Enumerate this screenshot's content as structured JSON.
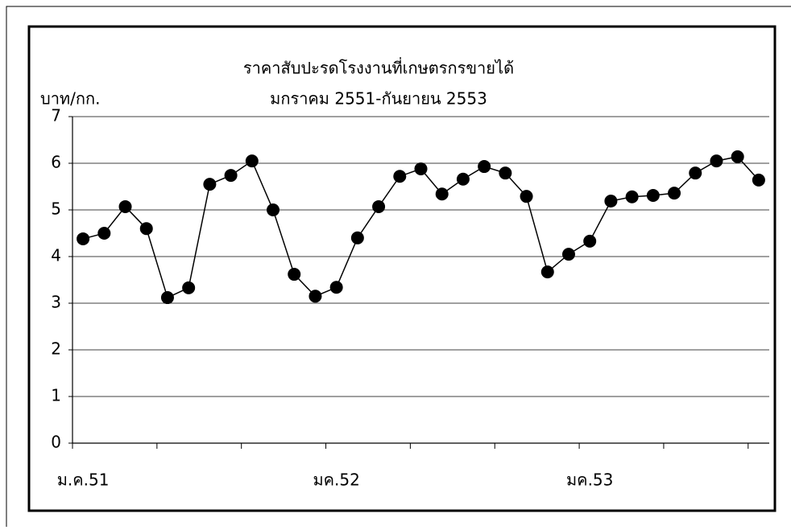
{
  "chart_data": {
    "type": "line",
    "title": "ราคาสับปะรดโรงงานที่เกษตรกรขายได้",
    "subtitle": "มกราคม 2551-กันยายน 2553",
    "y_label": "บาท/กก.",
    "categories": [
      "ม.ค.51",
      null,
      null,
      null,
      null,
      null,
      null,
      null,
      null,
      null,
      null,
      null,
      "มค.52",
      null,
      null,
      null,
      null,
      null,
      null,
      null,
      null,
      null,
      null,
      null,
      "มค.53",
      null,
      null,
      null,
      null,
      null,
      null,
      null,
      null
    ],
    "values": [
      4.38,
      4.5,
      5.07,
      4.6,
      3.12,
      3.33,
      5.55,
      5.74,
      6.05,
      5.0,
      3.62,
      3.15,
      3.34,
      4.4,
      5.07,
      5.72,
      5.88,
      5.34,
      5.66,
      5.93,
      5.79,
      5.29,
      3.67,
      4.05,
      4.33,
      5.19,
      5.28,
      5.31,
      5.36,
      5.79,
      6.05,
      6.14,
      5.64
    ],
    "color": "#000000",
    "ylim": [
      0,
      7
    ],
    "yticks": [
      0,
      1,
      2,
      3,
      4,
      5,
      6,
      7
    ],
    "grid": true
  }
}
